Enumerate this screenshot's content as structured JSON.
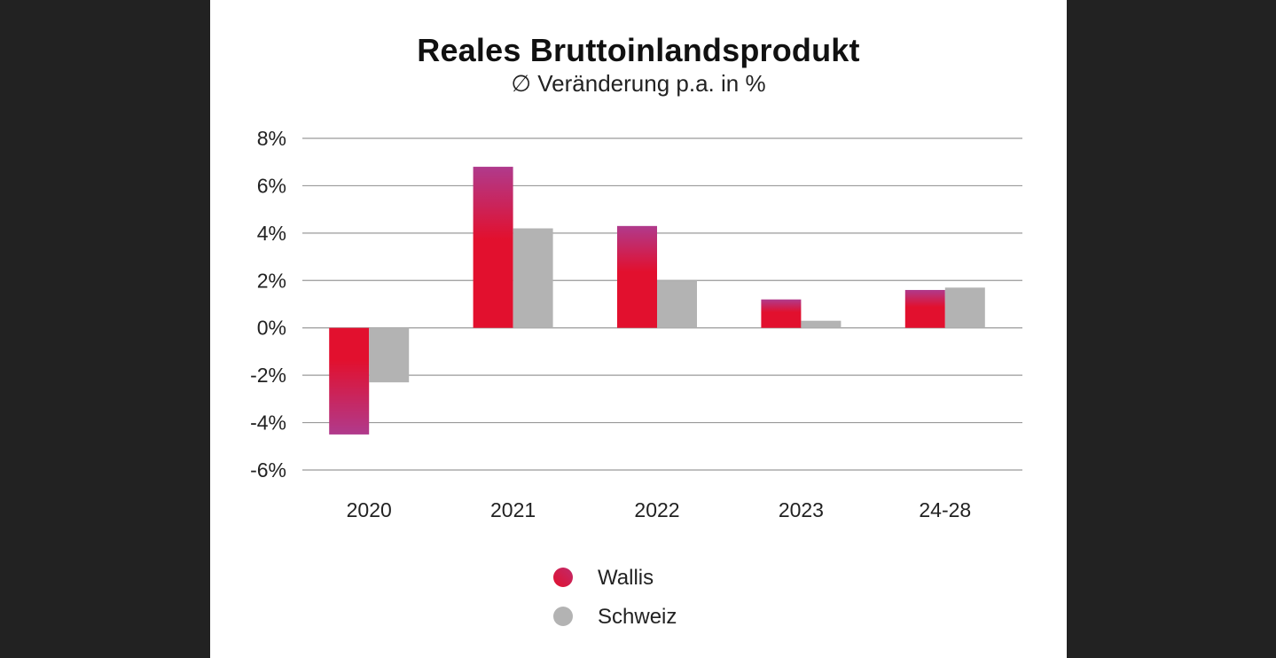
{
  "chart_data": {
    "type": "bar",
    "title": "Reales Bruttoinlandsprodukt",
    "subtitle": "∅ Veränderung p.a. in %",
    "categories": [
      "2020",
      "2021",
      "2022",
      "2023",
      "24-28"
    ],
    "series": [
      {
        "name": "Wallis",
        "values": [
          -4.5,
          6.8,
          4.3,
          1.2,
          1.6
        ],
        "color": "#e2102e",
        "color_accent": "#b03a8c"
      },
      {
        "name": "Schweiz",
        "values": [
          -2.3,
          4.2,
          2.0,
          0.3,
          1.7
        ],
        "color": "#b3b3b3"
      }
    ],
    "yticks": [
      "8%",
      "6%",
      "4%",
      "2%",
      "0%",
      "-2%",
      "-4%",
      "-6%"
    ],
    "ylim": [
      -6,
      8
    ],
    "grid": true,
    "legend": "bottom-center"
  }
}
